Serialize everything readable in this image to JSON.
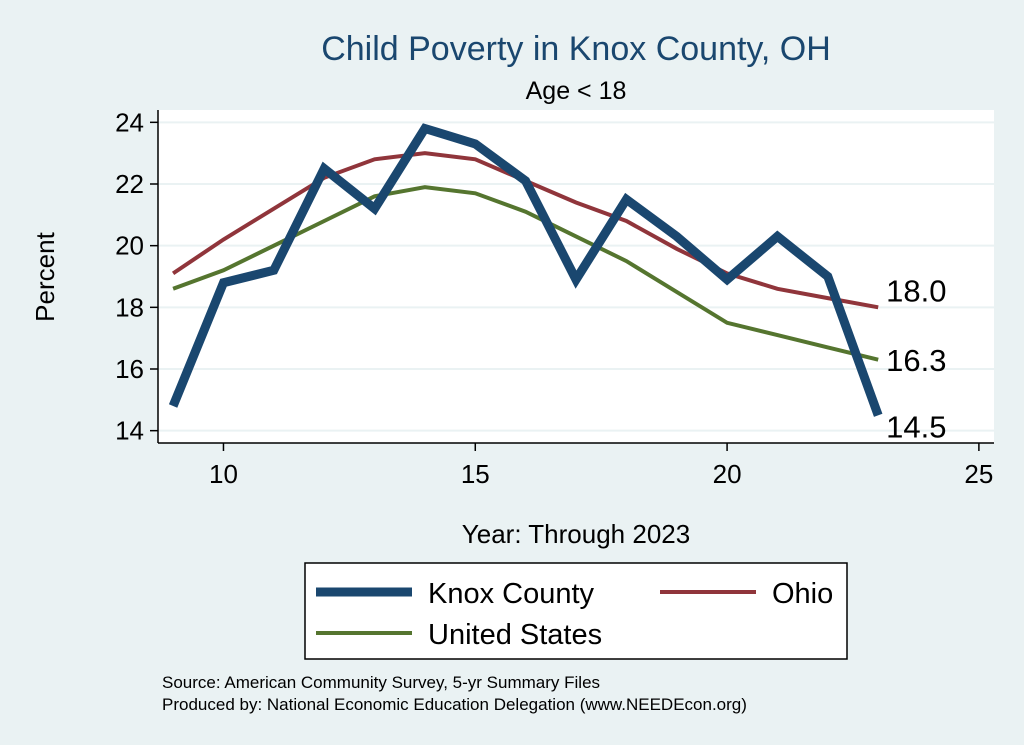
{
  "colors": {
    "background": "#eaf2f3",
    "plot_background": "#ffffff",
    "grid": "#eaf2f3",
    "title": "#1a476f",
    "text": "#000000"
  },
  "chart_data": {
    "type": "line",
    "title": "Child Poverty in Knox County, OH",
    "subtitle": "Age < 18",
    "xlabel": "Year: Through 2023",
    "ylabel": "Percent",
    "xlim": [
      8.7,
      25.3
    ],
    "ylim": [
      13.6,
      24.4
    ],
    "xticks": [
      10,
      15,
      20,
      25
    ],
    "yticks": [
      14,
      16,
      18,
      20,
      22,
      24
    ],
    "grid": true,
    "legend_position": "bottom",
    "x": [
      9,
      10,
      11,
      12,
      13,
      14,
      15,
      16,
      17,
      18,
      19,
      20,
      21,
      22,
      23
    ],
    "series": [
      {
        "name": "Knox County",
        "color": "#1a476f",
        "values": [
          14.8,
          18.8,
          19.2,
          22.5,
          21.2,
          23.8,
          23.3,
          22.1,
          18.9,
          21.5,
          20.3,
          18.9,
          20.3,
          19.0,
          14.5
        ],
        "end_label": "14.5"
      },
      {
        "name": "Ohio",
        "color": "#90353b",
        "values": [
          19.1,
          20.2,
          21.2,
          22.2,
          22.8,
          23.0,
          22.8,
          22.1,
          21.4,
          20.8,
          19.9,
          19.1,
          18.6,
          18.3,
          18.0
        ],
        "end_label": "18.0"
      },
      {
        "name": "United States",
        "color": "#55752f",
        "values": [
          18.6,
          19.2,
          20.0,
          20.8,
          21.6,
          21.9,
          21.7,
          21.1,
          20.3,
          19.5,
          18.5,
          17.5,
          17.1,
          16.7,
          16.3
        ],
        "end_label": "16.3"
      }
    ]
  },
  "notes": [
    "Source: American Community Survey, 5-yr Summary Files",
    "Produced by: National Economic Education Delegation (www.NEEDEcon.org)"
  ]
}
